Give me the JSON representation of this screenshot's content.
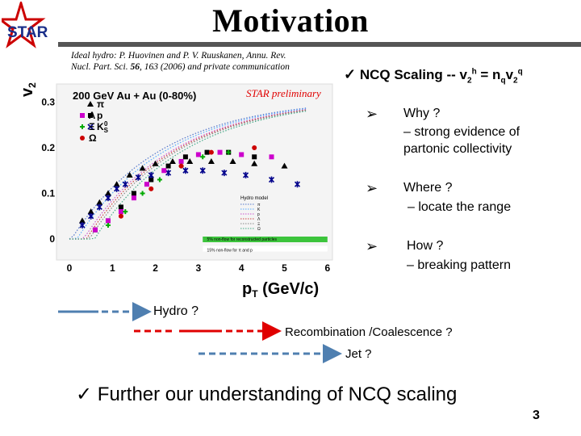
{
  "slide": {
    "title": "Motivation",
    "logo_text": "STAR",
    "reference_line1": "Ideal hydro: P. Huovinen and P. V. Ruuskanen, Annu. Rev.",
    "reference_line2_a": "Nucl. Part. Sci. ",
    "reference_line2_vol": "56",
    "reference_line2_b": ", 163 (2006) and private communication",
    "star_preliminary": "STAR preliminary",
    "ncq_label": "NCQ Scaling -- v",
    "ncq_sup_h": "h",
    "ncq_eq": " = n",
    "ncq_sub_q": "q",
    "ncq_v": "v",
    "ncq_sub_2": "2",
    "ncq_sup_q": "q",
    "bullets": [
      {
        "question": "Why ?",
        "answer_1": "– strong evidence of",
        "answer_2": "partonic collectivity"
      },
      {
        "question": "Where ?",
        "answer_1": "– locate the range"
      },
      {
        "question": "How ?",
        "answer_1": "– breaking pattern"
      }
    ],
    "hydro_label": "Hydro ?",
    "reco_label": "Recombination /Coalescence ?",
    "jet_label": "Jet ?",
    "conclusion": "Further our understanding of NCQ scaling",
    "page_number": "3",
    "colors": {
      "accent_red": "#e00000",
      "arrow_blue": "#4f7fb0",
      "rule": "#555555"
    }
  },
  "chart_data": {
    "type": "scatter",
    "title": "200 GeV Au + Au (0-80%)",
    "xlabel": "pT (GeV/c)",
    "ylabel": "v2",
    "xlim": [
      -0.4,
      6.5
    ],
    "ylim": [
      -0.03,
      0.33
    ],
    "x_ticks": [
      "0",
      "1",
      "2",
      "3",
      "4",
      "5",
      "6"
    ],
    "y_ticks": [
      "0",
      "0.1",
      "0.2",
      "0.3"
    ],
    "legend_title": "Hydro model",
    "legend_lines": [
      "π",
      "K",
      "p",
      "Λ",
      "Ξ",
      "Ω"
    ],
    "bands": [
      {
        "label": "5% non-flow for reconstructed particles",
        "color": "#3cc43c",
        "y": 0.0
      },
      {
        "label": "15% non-flow for π and p",
        "color": "#ffffff",
        "y": -0.015
      }
    ],
    "series": [
      {
        "name": "π",
        "marker": "triangle",
        "color": "#000000",
        "x": [
          0.3,
          0.5,
          0.7,
          0.9,
          1.1,
          1.4,
          1.7,
          2.0,
          2.4,
          2.8,
          3.3,
          3.8,
          4.3,
          5.0
        ],
        "y": [
          0.04,
          0.06,
          0.08,
          0.1,
          0.12,
          0.14,
          0.155,
          0.165,
          0.17,
          0.17,
          0.17,
          0.17,
          0.165,
          0.16
        ]
      },
      {
        "name": "p",
        "marker": "square",
        "color": "#000000",
        "x": [
          0.6,
          0.9,
          1.2,
          1.5,
          1.9,
          2.3,
          2.7,
          3.2,
          3.7,
          4.3
        ],
        "y": [
          0.02,
          0.04,
          0.07,
          0.1,
          0.13,
          0.16,
          0.18,
          0.19,
          0.19,
          0.18
        ]
      },
      {
        "name": "KS0",
        "marker": "star",
        "color": "#00008b",
        "x": [
          0.3,
          0.5,
          0.7,
          0.9,
          1.1,
          1.3,
          1.6,
          1.9,
          2.3,
          2.7,
          3.1,
          3.6,
          4.1,
          4.7,
          5.3
        ],
        "y": [
          0.03,
          0.05,
          0.07,
          0.09,
          0.11,
          0.12,
          0.135,
          0.14,
          0.145,
          0.15,
          0.15,
          0.145,
          0.14,
          0.13,
          0.12
        ]
      },
      {
        "name": "Λ",
        "marker": "square",
        "color": "#cc00cc",
        "x": [
          0.6,
          0.9,
          1.2,
          1.5,
          1.8,
          2.2,
          2.6,
          3.0,
          3.5,
          4.0,
          4.7
        ],
        "y": [
          0.02,
          0.04,
          0.06,
          0.09,
          0.12,
          0.15,
          0.17,
          0.185,
          0.19,
          0.185,
          0.18
        ]
      },
      {
        "name": "Ξ",
        "marker": "cross",
        "color": "#00aa00",
        "x": [
          0.9,
          1.3,
          1.7,
          2.1,
          2.6,
          3.1,
          3.7
        ],
        "y": [
          0.03,
          0.06,
          0.1,
          0.13,
          0.16,
          0.18,
          0.19
        ]
      },
      {
        "name": "Ω",
        "marker": "circle",
        "color": "#cc0000",
        "x": [
          1.2,
          1.9,
          2.6,
          3.3,
          4.3
        ],
        "y": [
          0.05,
          0.11,
          0.16,
          0.19,
          0.2
        ]
      }
    ]
  }
}
